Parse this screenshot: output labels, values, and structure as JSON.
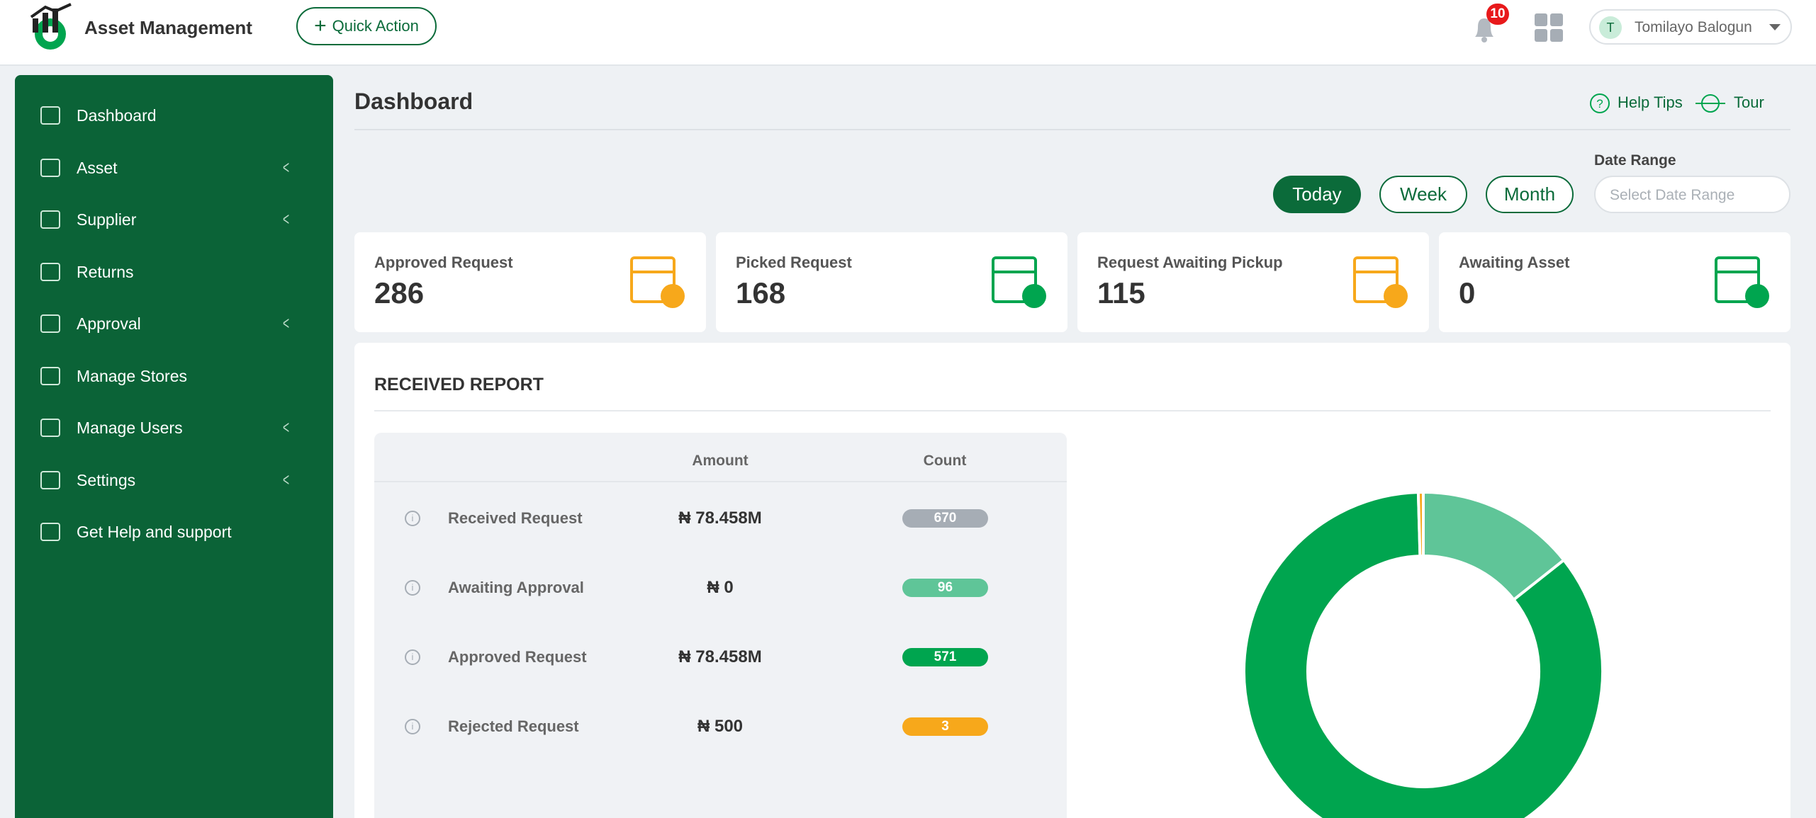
{
  "header": {
    "app_name": "Asset Management",
    "quick_action": "Quick Action",
    "notifications": 10,
    "user_initial": "T",
    "user_name": "Tomilayo Balogun"
  },
  "sidebar": {
    "items": [
      {
        "label": "Dashboard",
        "submenu": false
      },
      {
        "label": "Asset",
        "submenu": true
      },
      {
        "label": "Supplier",
        "submenu": true
      },
      {
        "label": "Returns",
        "submenu": false
      },
      {
        "label": "Approval",
        "submenu": true
      },
      {
        "label": "Manage Stores",
        "submenu": false
      },
      {
        "label": "Manage Users",
        "submenu": true
      },
      {
        "label": "Settings",
        "submenu": true
      },
      {
        "label": "Get Help and support",
        "submenu": false
      }
    ]
  },
  "page": {
    "title": "Dashboard",
    "help_tips": "Help Tips",
    "tour": "Tour",
    "filters": [
      "Today",
      "Week",
      "Month"
    ],
    "active_filter": 0,
    "date_range_label": "Date Range",
    "date_range_placeholder": "Select Date Range"
  },
  "cards": [
    {
      "label": "Approved Request",
      "value": 286,
      "color": "#f7a81b"
    },
    {
      "label": "Picked Request",
      "value": 168,
      "color": "#00a54f"
    },
    {
      "label": "Request Awaiting Pickup",
      "value": 115,
      "color": "#f7a81b"
    },
    {
      "label": "Awaiting Asset",
      "value": 0,
      "color": "#00a54f"
    }
  ],
  "report": {
    "title": "RECEIVED REPORT",
    "columns": [
      "Amount",
      "Count"
    ],
    "rows": [
      {
        "label": "Received Request",
        "amount": "₦ 78.458M",
        "count": 670,
        "color": "#a6adb5"
      },
      {
        "label": "Awaiting Approval",
        "amount": "₦ 0",
        "count": 96,
        "color": "#5fc598"
      },
      {
        "label": "Approved Request",
        "amount": "₦ 78.458M",
        "count": 571,
        "color": "#00a54f"
      },
      {
        "label": "Rejected Request",
        "amount": "₦ 500",
        "count": 3,
        "color": "#f7a81b"
      }
    ]
  }
}
